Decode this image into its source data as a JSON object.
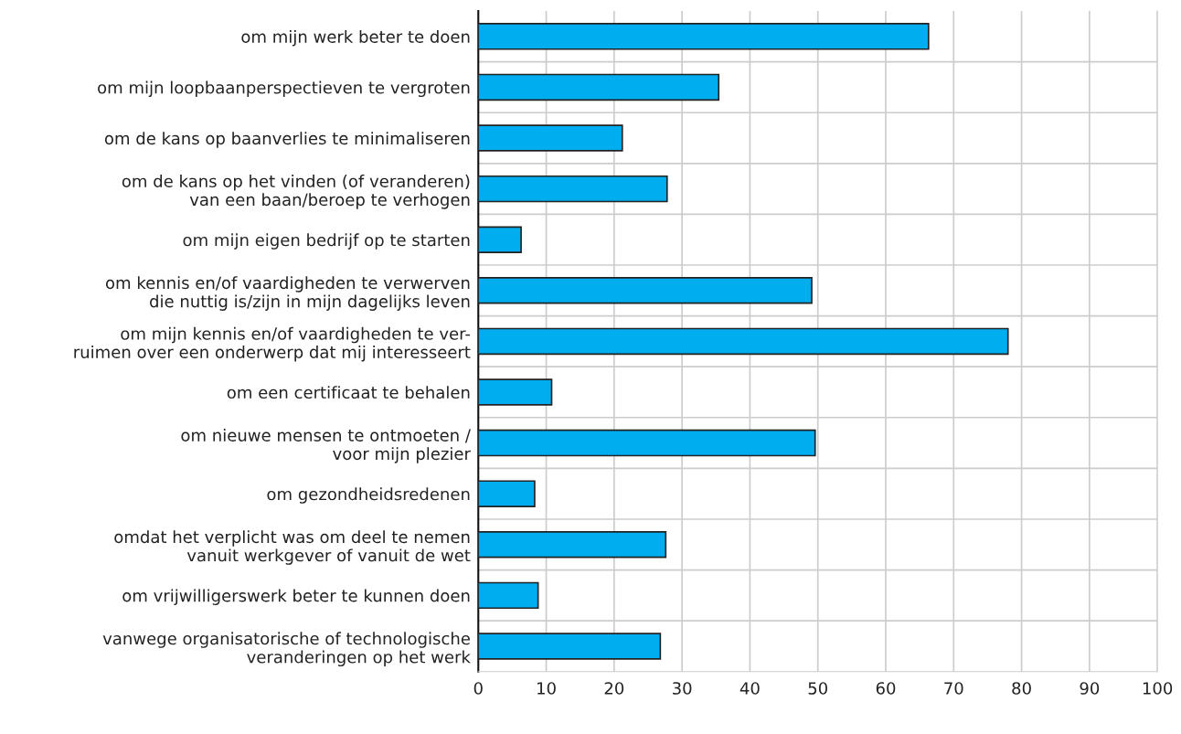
{
  "chart_data": {
    "type": "bar",
    "orientation": "horizontal",
    "categories": [
      "om mijn werk beter te doen",
      "om mijn loopbaanperspectieven te vergroten",
      "om de kans op baanverlies te minimaliseren",
      "om de kans op het vinden (of veranderen)\nvan een baan/beroep te verhogen",
      "om mijn eigen bedrijf op te starten",
      "om kennis en/of vaardigheden te verwerven\ndie nuttig is/zijn in mijn dagelijks leven",
      "om mijn kennis en/of vaardigheden te ver-\nruimen over een onderwerp dat mij interesseert",
      "om een certificaat te behalen",
      "om nieuwe mensen te ontmoeten /\nvoor mijn plezier",
      "om gezondheidsredenen",
      "omdat het verplicht was om deel te nemen\nvanuit werkgever of vanuit de wet",
      "om vrijwilligerswerk beter te kunnen doen",
      "vanwege organisatorische of technologische\nveranderingen op het werk"
    ],
    "values": [
      66.3,
      35.4,
      21.2,
      27.8,
      6.3,
      49.1,
      78.0,
      10.8,
      49.6,
      8.3,
      27.6,
      8.8,
      26.8
    ],
    "color": "#00aeef",
    "xlim": [
      0,
      100
    ],
    "xticks": [
      0,
      10,
      20,
      30,
      40,
      50,
      60,
      70,
      80,
      90,
      100
    ],
    "grid": true
  }
}
